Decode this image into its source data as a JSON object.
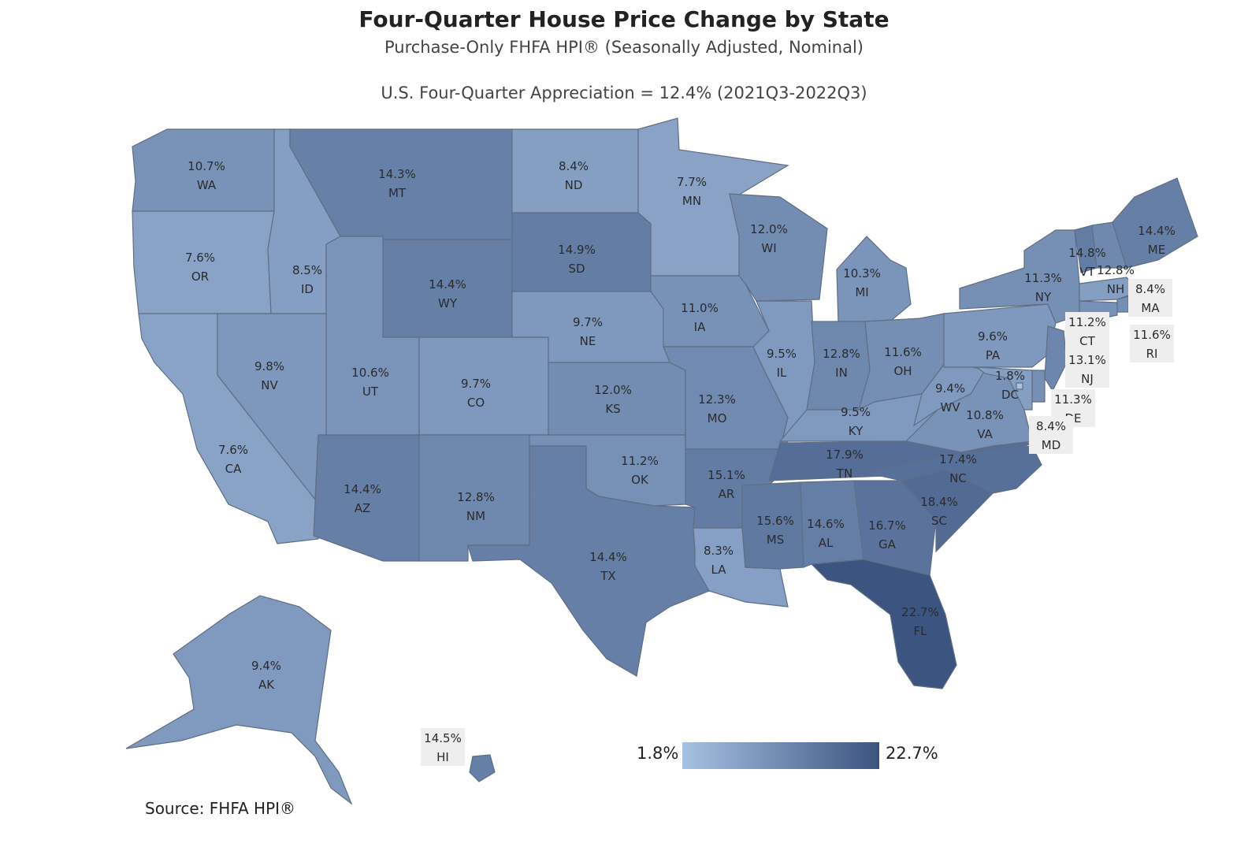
{
  "header": {
    "title": "Four-Quarter House Price Change by State",
    "subtitle": "Purchase-Only FHFA HPI® (Seasonally Adjusted, Nominal)",
    "us_note": "U.S. Four-Quarter Appreciation = 12.4% (2021Q3-2022Q3)"
  },
  "legend": {
    "min_label": "1.8%",
    "max_label": "22.7%",
    "min": 1.8,
    "max": 22.7,
    "color_low": "#a7c1e2",
    "color_high": "#3c5480"
  },
  "source": "Source:   FHFA HPI®",
  "states": [
    {
      "abbr": "WA",
      "value": 10.7,
      "label": "10.7%"
    },
    {
      "abbr": "OR",
      "value": 7.6,
      "label": "7.6%"
    },
    {
      "abbr": "CA",
      "value": 7.6,
      "label": "7.6%"
    },
    {
      "abbr": "ID",
      "value": 8.5,
      "label": "8.5%"
    },
    {
      "abbr": "NV",
      "value": 9.8,
      "label": "9.8%"
    },
    {
      "abbr": "MT",
      "value": 14.3,
      "label": "14.3%"
    },
    {
      "abbr": "WY",
      "value": 14.4,
      "label": "14.4%"
    },
    {
      "abbr": "UT",
      "value": 10.6,
      "label": "10.6%"
    },
    {
      "abbr": "AZ",
      "value": 14.4,
      "label": "14.4%"
    },
    {
      "abbr": "CO",
      "value": 9.7,
      "label": "9.7%"
    },
    {
      "abbr": "NM",
      "value": 12.8,
      "label": "12.8%"
    },
    {
      "abbr": "ND",
      "value": 8.4,
      "label": "8.4%"
    },
    {
      "abbr": "SD",
      "value": 14.9,
      "label": "14.9%"
    },
    {
      "abbr": "NE",
      "value": 9.7,
      "label": "9.7%"
    },
    {
      "abbr": "KS",
      "value": 12.0,
      "label": "12.0%"
    },
    {
      "abbr": "OK",
      "value": 11.2,
      "label": "11.2%"
    },
    {
      "abbr": "TX",
      "value": 14.4,
      "label": "14.4%"
    },
    {
      "abbr": "MN",
      "value": 7.7,
      "label": "7.7%"
    },
    {
      "abbr": "IA",
      "value": 11.0,
      "label": "11.0%"
    },
    {
      "abbr": "MO",
      "value": 12.3,
      "label": "12.3%"
    },
    {
      "abbr": "AR",
      "value": 15.1,
      "label": "15.1%"
    },
    {
      "abbr": "LA",
      "value": 8.3,
      "label": "8.3%"
    },
    {
      "abbr": "WI",
      "value": 12.0,
      "label": "12.0%"
    },
    {
      "abbr": "IL",
      "value": 9.5,
      "label": "9.5%"
    },
    {
      "abbr": "MI",
      "value": 10.3,
      "label": "10.3%"
    },
    {
      "abbr": "IN",
      "value": 12.8,
      "label": "12.8%"
    },
    {
      "abbr": "OH",
      "value": 11.6,
      "label": "11.6%"
    },
    {
      "abbr": "KY",
      "value": 9.5,
      "label": "9.5%"
    },
    {
      "abbr": "TN",
      "value": 17.9,
      "label": "17.9%"
    },
    {
      "abbr": "MS",
      "value": 15.6,
      "label": "15.6%"
    },
    {
      "abbr": "AL",
      "value": 14.6,
      "label": "14.6%"
    },
    {
      "abbr": "GA",
      "value": 16.7,
      "label": "16.7%"
    },
    {
      "abbr": "FL",
      "value": 22.7,
      "label": "22.7%"
    },
    {
      "abbr": "SC",
      "value": 18.4,
      "label": "18.4%"
    },
    {
      "abbr": "NC",
      "value": 17.4,
      "label": "17.4%"
    },
    {
      "abbr": "VA",
      "value": 10.8,
      "label": "10.8%"
    },
    {
      "abbr": "WV",
      "value": 9.4,
      "label": "9.4%"
    },
    {
      "abbr": "PA",
      "value": 9.6,
      "label": "9.6%"
    },
    {
      "abbr": "NY",
      "value": 11.3,
      "label": "11.3%"
    },
    {
      "abbr": "VT",
      "value": 14.8,
      "label": "14.8%"
    },
    {
      "abbr": "NH",
      "value": 12.8,
      "label": "12.8%"
    },
    {
      "abbr": "ME",
      "value": 14.4,
      "label": "14.4%"
    },
    {
      "abbr": "MA",
      "value": 8.4,
      "label": "8.4%"
    },
    {
      "abbr": "RI",
      "value": 11.6,
      "label": "11.6%"
    },
    {
      "abbr": "CT",
      "value": 11.2,
      "label": "11.2%"
    },
    {
      "abbr": "NJ",
      "value": 13.1,
      "label": "13.1%"
    },
    {
      "abbr": "DE",
      "value": 11.3,
      "label": "11.3%"
    },
    {
      "abbr": "MD",
      "value": 8.4,
      "label": "8.4%"
    },
    {
      "abbr": "DC",
      "value": 1.8,
      "label": "1.8%"
    },
    {
      "abbr": "AK",
      "value": 9.4,
      "label": "9.4%"
    },
    {
      "abbr": "HI",
      "value": 14.5,
      "label": "14.5%"
    }
  ]
}
